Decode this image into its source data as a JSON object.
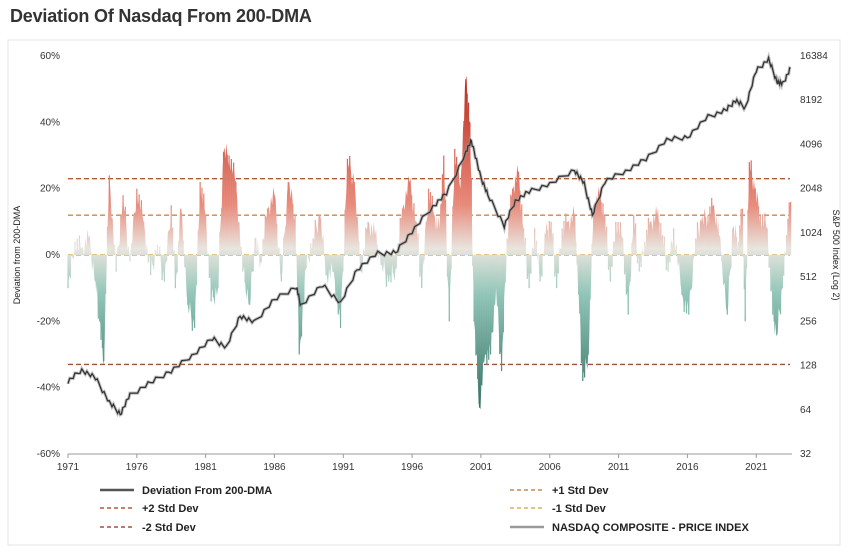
{
  "chart_data": {
    "type": "bar",
    "title": "Deviation Of Nasdaq From 200-DMA",
    "ylabel": "Deviation from 200-DMA",
    "y2label": "S&P 500 Index (Log 2)",
    "ylim": [
      -60,
      60
    ],
    "y2lim_log2": [
      32,
      16384
    ],
    "x_ticks": [
      "1971",
      "1976",
      "1981",
      "1986",
      "1991",
      "1996",
      "2001",
      "2006",
      "2011",
      "2016",
      "2021"
    ],
    "y_ticks": [
      "60%",
      "40%",
      "20%",
      "0%",
      "-20%",
      "-40%",
      "-60%"
    ],
    "y2_ticks": [
      "16384",
      "8192",
      "4096",
      "2048",
      "1024",
      "512",
      "256",
      "128",
      "64",
      "32"
    ],
    "reference_lines": [
      {
        "name": "+1 Std Dev",
        "value": 12,
        "color": "#c8884a"
      },
      {
        "name": "+2 Std Dev",
        "value": 23,
        "color": "#b05a3c"
      },
      {
        "name": "-1 Std Dev",
        "value": 0,
        "color": "#d8b060"
      },
      {
        "name": "-2 Std Dev",
        "value": -33,
        "color": "#a05040"
      }
    ],
    "deviation_series": {
      "name": "Deviation From 200-DMA",
      "points": [
        [
          1971.0,
          -10
        ],
        [
          1971.5,
          4
        ],
        [
          1972.0,
          2
        ],
        [
          1972.5,
          5
        ],
        [
          1973.0,
          -8
        ],
        [
          1973.3,
          -20
        ],
        [
          1973.6,
          -32
        ],
        [
          1974.0,
          24
        ],
        [
          1974.5,
          -5
        ],
        [
          1975.0,
          18
        ],
        [
          1975.5,
          -2
        ],
        [
          1976.0,
          20
        ],
        [
          1976.5,
          10
        ],
        [
          1977.0,
          -6
        ],
        [
          1977.5,
          3
        ],
        [
          1978.0,
          -8
        ],
        [
          1978.5,
          15
        ],
        [
          1978.8,
          -10
        ],
        [
          1979.2,
          14
        ],
        [
          1979.7,
          -15
        ],
        [
          1980.2,
          -22
        ],
        [
          1980.6,
          22
        ],
        [
          1981.0,
          12
        ],
        [
          1981.4,
          -14
        ],
        [
          1981.9,
          -10
        ],
        [
          1982.3,
          31
        ],
        [
          1982.7,
          30
        ],
        [
          1983.2,
          22
        ],
        [
          1983.7,
          -5
        ],
        [
          1984.2,
          -15
        ],
        [
          1984.6,
          5
        ],
        [
          1985.0,
          -2
        ],
        [
          1985.5,
          14
        ],
        [
          1986.0,
          18
        ],
        [
          1986.5,
          -8
        ],
        [
          1987.0,
          22
        ],
        [
          1987.5,
          12
        ],
        [
          1987.8,
          -30
        ],
        [
          1988.3,
          -4
        ],
        [
          1988.8,
          5
        ],
        [
          1989.3,
          12
        ],
        [
          1989.8,
          -6
        ],
        [
          1990.3,
          -5
        ],
        [
          1990.8,
          -22
        ],
        [
          1991.3,
          29
        ],
        [
          1991.8,
          22
        ],
        [
          1992.3,
          -5
        ],
        [
          1992.8,
          10
        ],
        [
          1993.3,
          6
        ],
        [
          1993.8,
          -3
        ],
        [
          1994.3,
          -8
        ],
        [
          1994.8,
          -4
        ],
        [
          1995.3,
          14
        ],
        [
          1995.8,
          22
        ],
        [
          1996.3,
          10
        ],
        [
          1996.7,
          -10
        ],
        [
          1997.2,
          20
        ],
        [
          1997.6,
          12
        ],
        [
          1998.0,
          8
        ],
        [
          1998.3,
          30
        ],
        [
          1998.7,
          -20
        ],
        [
          1999.1,
          32
        ],
        [
          1999.5,
          20
        ],
        [
          1999.9,
          53
        ],
        [
          2000.2,
          40
        ],
        [
          2000.5,
          -20
        ],
        [
          2000.9,
          -46
        ],
        [
          2001.3,
          -30
        ],
        [
          2001.7,
          -30
        ],
        [
          2002.1,
          -10
        ],
        [
          2002.5,
          -35
        ],
        [
          2002.9,
          5
        ],
        [
          2003.3,
          20
        ],
        [
          2003.7,
          25
        ],
        [
          2004.1,
          8
        ],
        [
          2004.5,
          -10
        ],
        [
          2004.9,
          8
        ],
        [
          2005.3,
          -8
        ],
        [
          2005.7,
          6
        ],
        [
          2006.1,
          10
        ],
        [
          2006.5,
          -10
        ],
        [
          2006.9,
          8
        ],
        [
          2007.3,
          10
        ],
        [
          2007.8,
          12
        ],
        [
          2008.1,
          -12
        ],
        [
          2008.4,
          -38
        ],
        [
          2008.8,
          -30
        ],
        [
          2009.2,
          15
        ],
        [
          2009.6,
          18
        ],
        [
          2010.0,
          12
        ],
        [
          2010.4,
          -8
        ],
        [
          2010.8,
          10
        ],
        [
          2011.3,
          5
        ],
        [
          2011.7,
          -18
        ],
        [
          2012.1,
          12
        ],
        [
          2012.5,
          -5
        ],
        [
          2012.9,
          4
        ],
        [
          2013.3,
          10
        ],
        [
          2013.8,
          12
        ],
        [
          2014.2,
          6
        ],
        [
          2014.6,
          -5
        ],
        [
          2015.0,
          8
        ],
        [
          2015.6,
          -12
        ],
        [
          2016.1,
          -18
        ],
        [
          2016.6,
          5
        ],
        [
          2017.0,
          10
        ],
        [
          2017.5,
          12
        ],
        [
          2017.9,
          15
        ],
        [
          2018.3,
          6
        ],
        [
          2018.9,
          -18
        ],
        [
          2019.3,
          8
        ],
        [
          2019.7,
          4
        ],
        [
          2020.0,
          14
        ],
        [
          2020.2,
          -20
        ],
        [
          2020.5,
          28
        ],
        [
          2020.9,
          20
        ],
        [
          2021.3,
          12
        ],
        [
          2021.8,
          8
        ],
        [
          2022.2,
          -18
        ],
        [
          2022.5,
          -24
        ],
        [
          2022.9,
          -10
        ],
        [
          2023.2,
          6
        ],
        [
          2023.5,
          16
        ]
      ]
    },
    "price_series": {
      "name": "NASDAQ COMPOSITE - PRICE INDEX",
      "points": [
        [
          1971.0,
          100
        ],
        [
          1972.0,
          120
        ],
        [
          1973.0,
          105
        ],
        [
          1974.0,
          72
        ],
        [
          1974.8,
          60
        ],
        [
          1975.5,
          80
        ],
        [
          1977.0,
          98
        ],
        [
          1978.5,
          118
        ],
        [
          1980.0,
          150
        ],
        [
          1981.5,
          195
        ],
        [
          1982.5,
          170
        ],
        [
          1983.5,
          280
        ],
        [
          1984.5,
          250
        ],
        [
          1986.0,
          360
        ],
        [
          1987.6,
          440
        ],
        [
          1987.9,
          330
        ],
        [
          1989.5,
          450
        ],
        [
          1990.8,
          340
        ],
        [
          1992.0,
          580
        ],
        [
          1993.5,
          740
        ],
        [
          1994.8,
          750
        ],
        [
          1996.0,
          1050
        ],
        [
          1997.5,
          1550
        ],
        [
          1998.5,
          1900
        ],
        [
          1999.9,
          3600
        ],
        [
          2000.3,
          4400
        ],
        [
          2000.9,
          2600
        ],
        [
          2001.5,
          1850
        ],
        [
          2002.7,
          1150
        ],
        [
          2003.5,
          1700
        ],
        [
          2004.5,
          1950
        ],
        [
          2006.0,
          2200
        ],
        [
          2007.8,
          2750
        ],
        [
          2008.5,
          2200
        ],
        [
          2009.1,
          1350
        ],
        [
          2010.0,
          2300
        ],
        [
          2011.5,
          2700
        ],
        [
          2013.0,
          3250
        ],
        [
          2014.5,
          4400
        ],
        [
          2016.0,
          4600
        ],
        [
          2017.5,
          6300
        ],
        [
          2018.8,
          7000
        ],
        [
          2019.5,
          8200
        ],
        [
          2020.2,
          7300
        ],
        [
          2021.0,
          13000
        ],
        [
          2021.9,
          15600
        ],
        [
          2022.5,
          11000
        ],
        [
          2022.9,
          10500
        ],
        [
          2023.5,
          13500
        ]
      ]
    }
  },
  "legend": [
    {
      "label": "Deviation From 200-DMA",
      "style": "solid",
      "color": "#555555"
    },
    {
      "label": "+1 Std Dev",
      "style": "dashed",
      "color": "#c8884a"
    },
    {
      "label": "+2 Std Dev",
      "style": "dashed",
      "color": "#b05a3c"
    },
    {
      "label": "-1 Std Dev",
      "style": "dashed",
      "color": "#d8b060"
    },
    {
      "label": "-2 Std Dev",
      "style": "dashed",
      "color": "#a05040"
    },
    {
      "label": "NASDAQ COMPOSITE - PRICE INDEX",
      "style": "solid",
      "color": "#999999"
    }
  ],
  "colors": {
    "positive_strong": "#c0392b",
    "positive_light": "#f2d3cf",
    "negative_light": "#cfe4df",
    "negative_strong": "#3f7f72",
    "price_line": "#333333"
  }
}
